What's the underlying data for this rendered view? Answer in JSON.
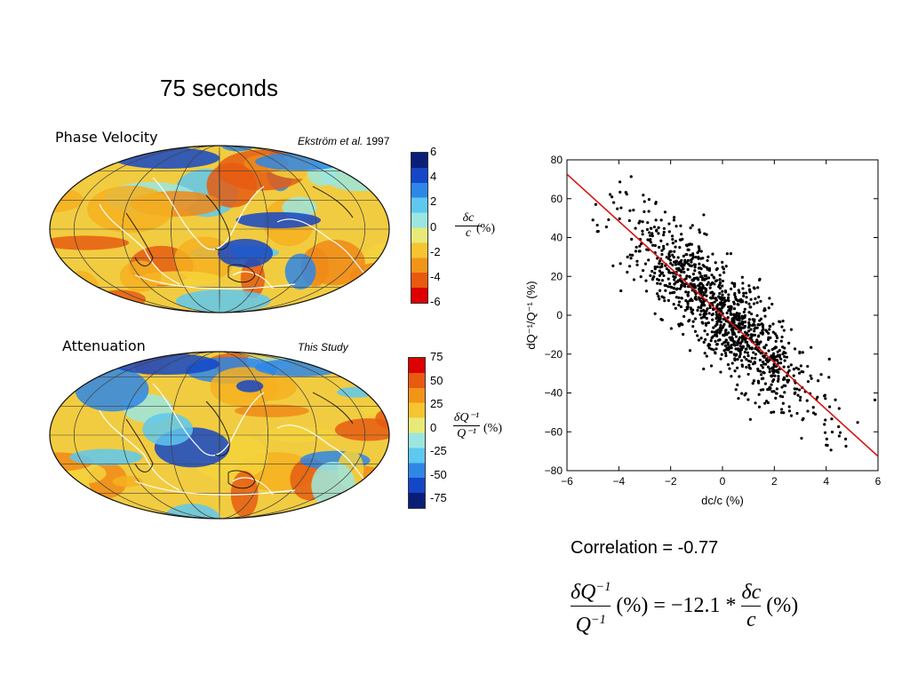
{
  "slide": {
    "title": "75 seconds"
  },
  "maps": [
    {
      "title": "Phase Velocity",
      "credit_italic": "Ekström et al.",
      "credit_year": "1997",
      "colorbar_ticks": [
        "6",
        "4",
        "2",
        "0",
        "-2",
        "-4",
        "-6"
      ],
      "colorbar_top": "#0a1e78",
      "colorbar_bottom": "#dd0000",
      "fraction_num": "δc",
      "fraction_den": "c",
      "fraction_unit": "(%)"
    },
    {
      "title": "Attenuation",
      "credit_italic": "This Study",
      "credit_year": "",
      "colorbar_ticks": [
        "75",
        "50",
        "25",
        "0",
        "-25",
        "-50",
        "-75"
      ],
      "colorbar_top": "#dd0000",
      "colorbar_bottom": "#0a1e78",
      "fraction_num": "δQ⁻¹",
      "fraction_den": "Q⁻¹",
      "fraction_unit": "(%)"
    }
  ],
  "chart_data": {
    "type": "scatter",
    "title": "",
    "xlabel": "dc/c (%)",
    "ylabel": "dQ⁻¹/Q⁻¹ (%)",
    "xlim": [
      -6,
      6
    ],
    "ylim": [
      -80,
      80
    ],
    "xticks": [
      "−6",
      "−4",
      "−2",
      "0",
      "2",
      "4",
      "6"
    ],
    "yticks": [
      "80",
      "60",
      "40",
      "20",
      "0",
      "−20",
      "−40",
      "−60",
      "−80"
    ],
    "fit_line": {
      "slope": -12.1,
      "intercept": 0,
      "color": "#dd1111"
    },
    "point_color": "#000000",
    "n_points": 1200,
    "spread_sd_x": 1.75,
    "spread_sd_y": 13
  },
  "correlation_text": "Correlation = -0.77",
  "equation": {
    "lhs_num": "δQ",
    "lhs_num_sup": "−1",
    "lhs_den": "Q",
    "lhs_den_sup": "−1",
    "mid": "(%) = −12.1 *",
    "rhs_num": "δc",
    "rhs_den": "c",
    "rhs_unit": "(%)"
  }
}
